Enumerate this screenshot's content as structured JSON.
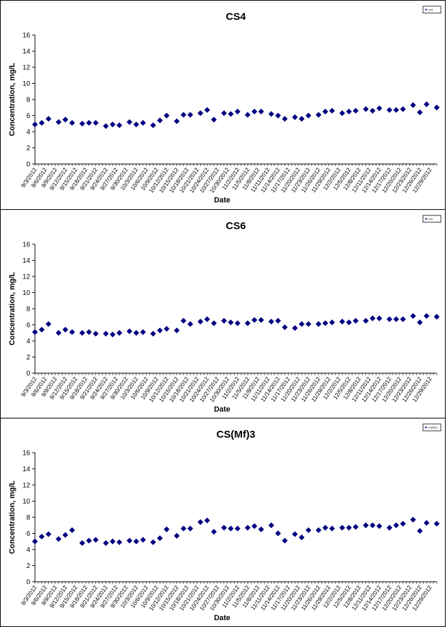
{
  "chart_data": [
    {
      "type": "scatter",
      "title": "CS4",
      "xlabel": "Date",
      "ylabel": "Concentration, mg/L",
      "ylim": [
        0,
        16
      ],
      "yticks": [
        "0",
        "2",
        "4",
        "6",
        "8",
        "10",
        "12",
        "14",
        "16"
      ],
      "x_tick_labels": [
        "9/3/2012",
        "9/6/2012",
        "9/9/2012",
        "9/12/2012",
        "9/15/2012",
        "9/18/2012",
        "9/21/2012",
        "9/24/2012",
        "9/27/2012",
        "9/30/2012",
        "10/3/2012",
        "10/6/2012",
        "10/9/2012",
        "10/12/2012",
        "10/15/2012",
        "10/18/2012",
        "10/21/2012",
        "10/24/2012",
        "10/27/2012",
        "10/30/2012",
        "11/2/2012",
        "11/5/2012",
        "11/8/2012",
        "11/11/2012",
        "11/14/2012",
        "11/17/2012",
        "11/20/2012",
        "11/23/2012",
        "11/26/2012",
        "11/29/2012",
        "12/2/2012",
        "12/5/2012",
        "12/8/2012",
        "12/11/2012",
        "12/14/2012",
        "12/17/2012",
        "12/20/2012",
        "12/23/2012",
        "12/26/2012",
        "12/29/2012"
      ],
      "xlim": [
        "2012-09-03",
        "2012-12-31"
      ],
      "grid": false,
      "legend_position": "top-right",
      "legend_label": "CS4",
      "marker": "diamond",
      "marker_color": "#000080",
      "points": [
        {
          "x": "2012-09-03",
          "y": 4.9
        },
        {
          "x": "2012-09-05",
          "y": 5.1
        },
        {
          "x": "2012-09-07",
          "y": 5.6
        },
        {
          "x": "2012-09-10",
          "y": 5.2
        },
        {
          "x": "2012-09-12",
          "y": 5.5
        },
        {
          "x": "2012-09-14",
          "y": 5.1
        },
        {
          "x": "2012-09-17",
          "y": 5.0
        },
        {
          "x": "2012-09-19",
          "y": 5.1
        },
        {
          "x": "2012-09-21",
          "y": 5.1
        },
        {
          "x": "2012-09-24",
          "y": 4.7
        },
        {
          "x": "2012-09-26",
          "y": 4.9
        },
        {
          "x": "2012-09-28",
          "y": 4.8
        },
        {
          "x": "2012-10-01",
          "y": 5.2
        },
        {
          "x": "2012-10-03",
          "y": 4.9
        },
        {
          "x": "2012-10-05",
          "y": 5.1
        },
        {
          "x": "2012-10-08",
          "y": 4.8
        },
        {
          "x": "2012-10-10",
          "y": 5.4
        },
        {
          "x": "2012-10-12",
          "y": 6.0
        },
        {
          "x": "2012-10-15",
          "y": 5.3
        },
        {
          "x": "2012-10-17",
          "y": 6.1
        },
        {
          "x": "2012-10-19",
          "y": 6.1
        },
        {
          "x": "2012-10-22",
          "y": 6.3
        },
        {
          "x": "2012-10-24",
          "y": 6.7
        },
        {
          "x": "2012-10-26",
          "y": 5.5
        },
        {
          "x": "2012-10-29",
          "y": 6.3
        },
        {
          "x": "2012-10-31",
          "y": 6.2
        },
        {
          "x": "2012-11-02",
          "y": 6.5
        },
        {
          "x": "2012-11-05",
          "y": 6.1
        },
        {
          "x": "2012-11-07",
          "y": 6.5
        },
        {
          "x": "2012-11-09",
          "y": 6.5
        },
        {
          "x": "2012-11-12",
          "y": 6.2
        },
        {
          "x": "2012-11-14",
          "y": 6.0
        },
        {
          "x": "2012-11-16",
          "y": 5.6
        },
        {
          "x": "2012-11-19",
          "y": 5.8
        },
        {
          "x": "2012-11-21",
          "y": 5.6
        },
        {
          "x": "2012-11-23",
          "y": 6.0
        },
        {
          "x": "2012-11-26",
          "y": 6.1
        },
        {
          "x": "2012-11-28",
          "y": 6.5
        },
        {
          "x": "2012-11-30",
          "y": 6.6
        },
        {
          "x": "2012-12-03",
          "y": 6.3
        },
        {
          "x": "2012-12-05",
          "y": 6.5
        },
        {
          "x": "2012-12-07",
          "y": 6.6
        },
        {
          "x": "2012-12-10",
          "y": 6.8
        },
        {
          "x": "2012-12-12",
          "y": 6.6
        },
        {
          "x": "2012-12-14",
          "y": 6.9
        },
        {
          "x": "2012-12-17",
          "y": 6.7
        },
        {
          "x": "2012-12-19",
          "y": 6.7
        },
        {
          "x": "2012-12-21",
          "y": 6.8
        },
        {
          "x": "2012-12-24",
          "y": 7.3
        },
        {
          "x": "2012-12-26",
          "y": 6.4
        },
        {
          "x": "2012-12-28",
          "y": 7.4
        },
        {
          "x": "2012-12-31",
          "y": 7.0
        }
      ]
    },
    {
      "type": "scatter",
      "title": "CS6",
      "xlabel": "Date",
      "ylabel": "Concentration, mg/L",
      "ylim": [
        0,
        16
      ],
      "yticks": [
        "0",
        "2",
        "4",
        "6",
        "8",
        "10",
        "12",
        "14",
        "16"
      ],
      "x_tick_labels": [
        "9/3/2012",
        "9/6/2012",
        "9/9/2012",
        "9/12/2012",
        "9/15/2012",
        "9/18/2012",
        "9/21/2012",
        "9/24/2012",
        "9/27/2012",
        "9/30/2012",
        "10/3/2012",
        "10/6/2012",
        "10/9/2012",
        "10/12/2012",
        "10/15/2012",
        "10/18/2012",
        "10/21/2012",
        "10/24/2012",
        "10/27/2012",
        "10/30/2012",
        "11/2/2012",
        "11/5/2012",
        "11/8/2012",
        "11/11/2012",
        "11/14/2012",
        "11/17/2012",
        "11/20/2012",
        "11/23/2012",
        "11/26/2012",
        "11/29/2012",
        "12/2/2012",
        "12/5/2012",
        "12/8/2012",
        "12/11/2012",
        "12/14/2012",
        "12/17/2012",
        "12/20/2012",
        "12/23/2012",
        "12/26/2012",
        "12/29/2012"
      ],
      "xlim": [
        "2012-09-03",
        "2012-12-31"
      ],
      "grid": false,
      "legend_position": "top-right",
      "legend_label": "CS6",
      "marker": "diamond",
      "marker_color": "#000080",
      "points": [
        {
          "x": "2012-09-03",
          "y": 5.1
        },
        {
          "x": "2012-09-05",
          "y": 5.4
        },
        {
          "x": "2012-09-07",
          "y": 6.1
        },
        {
          "x": "2012-09-10",
          "y": 5.0
        },
        {
          "x": "2012-09-12",
          "y": 5.4
        },
        {
          "x": "2012-09-14",
          "y": 5.1
        },
        {
          "x": "2012-09-17",
          "y": 5.0
        },
        {
          "x": "2012-09-19",
          "y": 5.1
        },
        {
          "x": "2012-09-21",
          "y": 4.9
        },
        {
          "x": "2012-09-24",
          "y": 4.9
        },
        {
          "x": "2012-09-26",
          "y": 4.8
        },
        {
          "x": "2012-09-28",
          "y": 5.0
        },
        {
          "x": "2012-10-01",
          "y": 5.2
        },
        {
          "x": "2012-10-03",
          "y": 5.0
        },
        {
          "x": "2012-10-05",
          "y": 5.1
        },
        {
          "x": "2012-10-08",
          "y": 4.9
        },
        {
          "x": "2012-10-10",
          "y": 5.3
        },
        {
          "x": "2012-10-12",
          "y": 5.5
        },
        {
          "x": "2012-10-15",
          "y": 5.3
        },
        {
          "x": "2012-10-17",
          "y": 6.5
        },
        {
          "x": "2012-10-19",
          "y": 6.1
        },
        {
          "x": "2012-10-22",
          "y": 6.4
        },
        {
          "x": "2012-10-24",
          "y": 6.7
        },
        {
          "x": "2012-10-26",
          "y": 6.2
        },
        {
          "x": "2012-10-29",
          "y": 6.5
        },
        {
          "x": "2012-10-31",
          "y": 6.3
        },
        {
          "x": "2012-11-02",
          "y": 6.2
        },
        {
          "x": "2012-11-05",
          "y": 6.2
        },
        {
          "x": "2012-11-07",
          "y": 6.6
        },
        {
          "x": "2012-11-09",
          "y": 6.6
        },
        {
          "x": "2012-11-12",
          "y": 6.4
        },
        {
          "x": "2012-11-14",
          "y": 6.5
        },
        {
          "x": "2012-11-16",
          "y": 5.7
        },
        {
          "x": "2012-11-19",
          "y": 5.6
        },
        {
          "x": "2012-11-21",
          "y": 6.1
        },
        {
          "x": "2012-11-23",
          "y": 6.1
        },
        {
          "x": "2012-11-26",
          "y": 6.1
        },
        {
          "x": "2012-11-28",
          "y": 6.2
        },
        {
          "x": "2012-11-30",
          "y": 6.3
        },
        {
          "x": "2012-12-03",
          "y": 6.4
        },
        {
          "x": "2012-12-05",
          "y": 6.3
        },
        {
          "x": "2012-12-07",
          "y": 6.5
        },
        {
          "x": "2012-12-10",
          "y": 6.5
        },
        {
          "x": "2012-12-12",
          "y": 6.8
        },
        {
          "x": "2012-12-14",
          "y": 6.8
        },
        {
          "x": "2012-12-17",
          "y": 6.7
        },
        {
          "x": "2012-12-19",
          "y": 6.7
        },
        {
          "x": "2012-12-21",
          "y": 6.7
        },
        {
          "x": "2012-12-24",
          "y": 7.1
        },
        {
          "x": "2012-12-26",
          "y": 6.3
        },
        {
          "x": "2012-12-28",
          "y": 7.1
        },
        {
          "x": "2012-12-31",
          "y": 7.0
        }
      ]
    },
    {
      "type": "scatter",
      "title": "CS(Mf)3",
      "xlabel": "Date",
      "ylabel": "Concentration, mg/L",
      "ylim": [
        0,
        16
      ],
      "yticks": [
        "0",
        "2",
        "4",
        "6",
        "8",
        "10",
        "12",
        "14",
        "16"
      ],
      "x_tick_labels": [
        "9/3/2012",
        "9/6/2012",
        "9/9/2012",
        "9/12/2012",
        "9/15/2012",
        "9/18/2012",
        "9/21/2012",
        "9/24/2012",
        "9/27/2012",
        "9/30/2012",
        "10/3/2012",
        "10/6/2012",
        "10/9/2012",
        "10/12/2012",
        "10/15/2012",
        "10/18/2012",
        "10/21/2012",
        "10/24/2012",
        "10/27/2012",
        "10/30/2012",
        "11/2/2012",
        "11/5/2012",
        "11/8/2012",
        "11/11/2012",
        "11/14/2012",
        "11/17/2012",
        "11/20/2012",
        "11/23/2012",
        "11/26/2012",
        "11/29/2012",
        "12/2/2012",
        "12/5/2012",
        "12/8/2012",
        "12/11/2012",
        "12/14/2012",
        "12/17/2012",
        "12/20/2012",
        "12/23/2012",
        "12/26/2012",
        "12/29/2012"
      ],
      "xlim": [
        "2012-09-03",
        "2012-12-31"
      ],
      "grid": false,
      "legend_position": "top-right",
      "legend_label": "CS(Mf)3",
      "marker": "diamond",
      "marker_color": "#000080",
      "points": [
        {
          "x": "2012-09-03",
          "y": 5.0
        },
        {
          "x": "2012-09-05",
          "y": 5.6
        },
        {
          "x": "2012-09-07",
          "y": 5.9
        },
        {
          "x": "2012-09-10",
          "y": 5.3
        },
        {
          "x": "2012-09-12",
          "y": 5.8
        },
        {
          "x": "2012-09-14",
          "y": 6.4
        },
        {
          "x": "2012-09-17",
          "y": 4.8
        },
        {
          "x": "2012-09-19",
          "y": 5.1
        },
        {
          "x": "2012-09-21",
          "y": 5.2
        },
        {
          "x": "2012-09-24",
          "y": 4.8
        },
        {
          "x": "2012-09-26",
          "y": 5.0
        },
        {
          "x": "2012-09-28",
          "y": 4.9
        },
        {
          "x": "2012-10-01",
          "y": 5.1
        },
        {
          "x": "2012-10-03",
          "y": 5.0
        },
        {
          "x": "2012-10-05",
          "y": 5.2
        },
        {
          "x": "2012-10-08",
          "y": 4.9
        },
        {
          "x": "2012-10-10",
          "y": 5.4
        },
        {
          "x": "2012-10-12",
          "y": 6.5
        },
        {
          "x": "2012-10-15",
          "y": 5.7
        },
        {
          "x": "2012-10-17",
          "y": 6.6
        },
        {
          "x": "2012-10-19",
          "y": 6.6
        },
        {
          "x": "2012-10-22",
          "y": 7.4
        },
        {
          "x": "2012-10-24",
          "y": 7.6
        },
        {
          "x": "2012-10-26",
          "y": 6.2
        },
        {
          "x": "2012-10-29",
          "y": 6.7
        },
        {
          "x": "2012-10-31",
          "y": 6.6
        },
        {
          "x": "2012-11-02",
          "y": 6.6
        },
        {
          "x": "2012-11-05",
          "y": 6.7
        },
        {
          "x": "2012-11-07",
          "y": 6.9
        },
        {
          "x": "2012-11-09",
          "y": 6.5
        },
        {
          "x": "2012-11-12",
          "y": 7.0
        },
        {
          "x": "2012-11-14",
          "y": 6.0
        },
        {
          "x": "2012-11-16",
          "y": 5.1
        },
        {
          "x": "2012-11-19",
          "y": 5.9
        },
        {
          "x": "2012-11-21",
          "y": 5.5
        },
        {
          "x": "2012-11-23",
          "y": 6.4
        },
        {
          "x": "2012-11-26",
          "y": 6.4
        },
        {
          "x": "2012-11-28",
          "y": 6.7
        },
        {
          "x": "2012-11-30",
          "y": 6.6
        },
        {
          "x": "2012-12-03",
          "y": 6.7
        },
        {
          "x": "2012-12-05",
          "y": 6.7
        },
        {
          "x": "2012-12-07",
          "y": 6.8
        },
        {
          "x": "2012-12-10",
          "y": 7.0
        },
        {
          "x": "2012-12-12",
          "y": 7.0
        },
        {
          "x": "2012-12-14",
          "y": 6.9
        },
        {
          "x": "2012-12-17",
          "y": 6.7
        },
        {
          "x": "2012-12-19",
          "y": 7.0
        },
        {
          "x": "2012-12-21",
          "y": 7.2
        },
        {
          "x": "2012-12-24",
          "y": 7.7
        },
        {
          "x": "2012-12-26",
          "y": 6.3
        },
        {
          "x": "2012-12-28",
          "y": 7.3
        },
        {
          "x": "2012-12-31",
          "y": 7.2
        }
      ]
    }
  ]
}
